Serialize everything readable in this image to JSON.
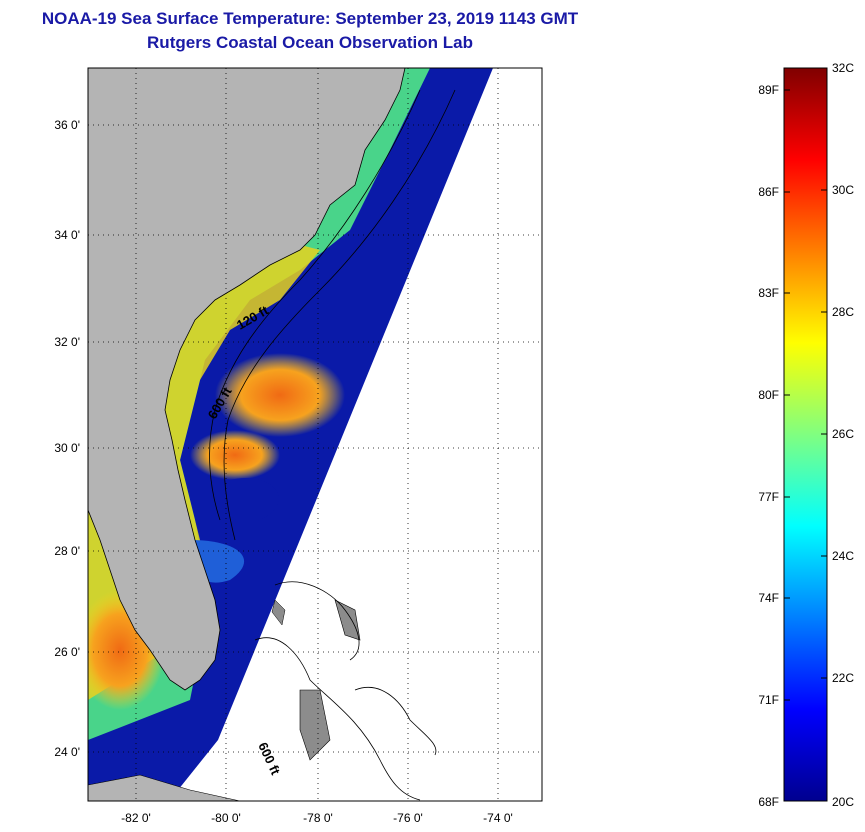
{
  "title": {
    "line1": "NOAA-19 Sea Surface Temperature:  September 23, 2019 1143 GMT",
    "line2": "Rutgers Coastal Ocean Observation Lab"
  },
  "map": {
    "lat_labels": [
      "36 0'",
      "34 0'",
      "32 0'",
      "30 0'",
      "28 0'",
      "26 0'",
      "24 0'"
    ],
    "lon_labels": [
      "-82 0'",
      "-80 0'",
      "-78 0'",
      "-76 0'",
      "-74 0'"
    ],
    "isobath_labels": [
      "120 ft",
      "600 ft",
      "600 ft"
    ],
    "colors": {
      "land": "#b4b4b4",
      "cold": "#00149c",
      "warm": "#f07a1a"
    }
  },
  "colorbar": {
    "fahrenheit_labels": [
      "89F",
      "86F",
      "83F",
      "80F",
      "77F",
      "74F",
      "71F",
      "68F"
    ],
    "celsius_labels": [
      "32C",
      "30C",
      "28C",
      "26C",
      "24C",
      "22C",
      "20C"
    ],
    "range_c": [
      20,
      32
    ]
  }
}
